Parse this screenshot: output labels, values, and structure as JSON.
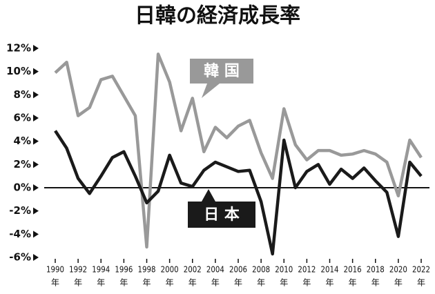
{
  "chart_data": {
    "type": "line",
    "title": "日韓の経済成長率",
    "x": [
      1990,
      1991,
      1992,
      1993,
      1994,
      1995,
      1996,
      1997,
      1998,
      1999,
      2000,
      2001,
      2002,
      2003,
      2004,
      2005,
      2006,
      2007,
      2008,
      2009,
      2010,
      2011,
      2012,
      2013,
      2014,
      2015,
      2016,
      2017,
      2018,
      2019,
      2020,
      2021,
      2022
    ],
    "x_unit_label": "年",
    "series": [
      {
        "name": "韓 国",
        "color": "#999999",
        "values": [
          9.9,
          10.8,
          6.2,
          6.9,
          9.3,
          9.6,
          7.9,
          6.2,
          -5.1,
          11.5,
          9.1,
          4.9,
          7.7,
          3.1,
          5.2,
          4.3,
          5.3,
          5.8,
          3.0,
          0.8,
          6.8,
          3.7,
          2.4,
          3.2,
          3.2,
          2.8,
          2.9,
          3.2,
          2.9,
          2.2,
          -0.7,
          4.1,
          2.6
        ]
      },
      {
        "name": "日 本",
        "color": "#1a1a1a",
        "values": [
          4.9,
          3.4,
          0.8,
          -0.5,
          1.0,
          2.6,
          3.1,
          1.0,
          -1.3,
          -0.3,
          2.8,
          0.4,
          0.1,
          1.5,
          2.2,
          1.8,
          1.4,
          1.5,
          -1.2,
          -5.7,
          4.1,
          0.0,
          1.4,
          2.0,
          0.3,
          1.6,
          0.8,
          1.7,
          0.6,
          -0.4,
          -4.2,
          2.2,
          1.0
        ]
      }
    ],
    "xlim": [
      1990,
      2022
    ],
    "xticks": [
      1990,
      1992,
      1994,
      1996,
      1998,
      2000,
      2002,
      2004,
      2006,
      2008,
      2010,
      2012,
      2014,
      2016,
      2018,
      2020,
      2022
    ],
    "ylim": [
      -6,
      12
    ],
    "yticks": [
      {
        "value": -6,
        "label": "-6%"
      },
      {
        "value": -4,
        "label": "-4%"
      },
      {
        "value": -2,
        "label": "-2%"
      },
      {
        "value": 0,
        "label": "0%"
      },
      {
        "value": 2,
        "label": "2%"
      },
      {
        "value": 4,
        "label": "4%"
      },
      {
        "value": 6,
        "label": "6%"
      },
      {
        "value": 8,
        "label": "8%"
      },
      {
        "value": 10,
        "label": "10%"
      },
      {
        "value": 12,
        "label": "12%"
      }
    ],
    "grid": false
  }
}
